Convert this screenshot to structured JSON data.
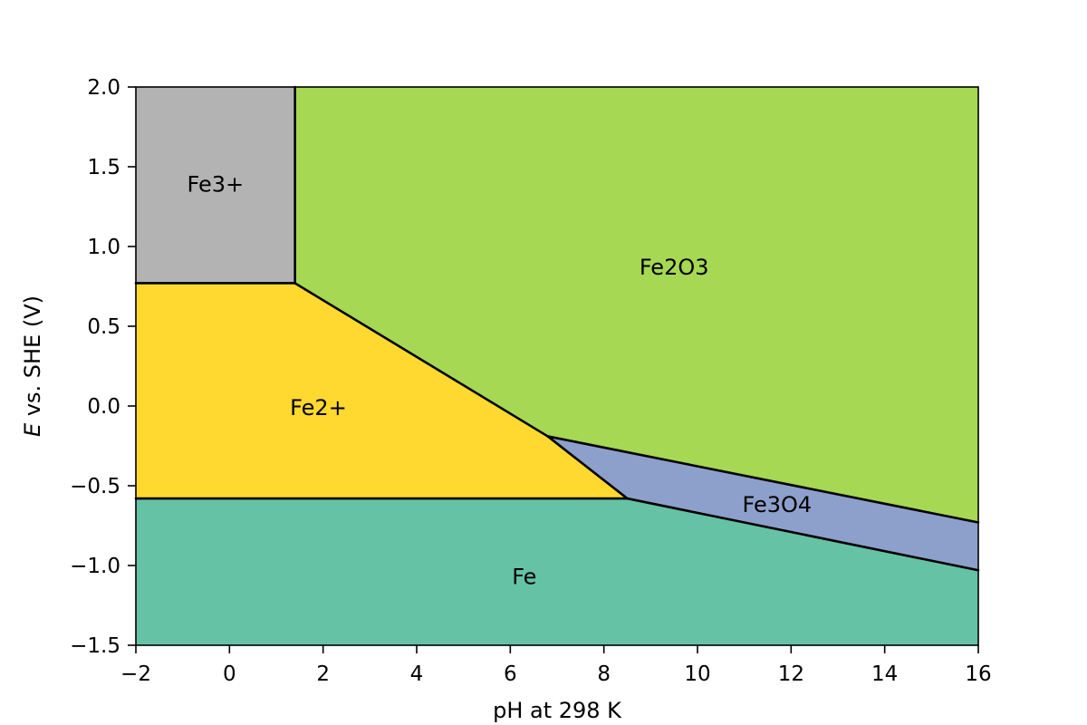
{
  "chart_data": {
    "type": "area",
    "title": "",
    "xlabel": "pH at 298 K",
    "ylabel_italic": "E",
    "ylabel_rest": " vs. SHE (V)",
    "xlim": [
      -2,
      16
    ],
    "ylim": [
      -1.5,
      2.0
    ],
    "xticks": [
      -2,
      0,
      2,
      4,
      6,
      8,
      10,
      12,
      14,
      16
    ],
    "yticks": [
      -1.5,
      -1.0,
      -0.5,
      0.0,
      0.5,
      1.0,
      1.5,
      2.0
    ],
    "xtick_labels": [
      "−2",
      "0",
      "2",
      "4",
      "6",
      "8",
      "10",
      "12",
      "14",
      "16"
    ],
    "ytick_labels": [
      "−1.5",
      "−1.0",
      "−0.5",
      "0.0",
      "0.5",
      "1.0",
      "1.5",
      "2.0"
    ],
    "grid": false,
    "regions": [
      {
        "name": "Fe3+",
        "color": "#b3b3b3",
        "polygon": [
          [
            -2,
            2.0
          ],
          [
            1.4,
            2.0
          ],
          [
            1.4,
            0.77
          ],
          [
            -2,
            0.77
          ]
        ],
        "label_at": [
          -0.3,
          1.39
        ]
      },
      {
        "name": "Fe2O3",
        "color": "#a6d854",
        "polygon": [
          [
            1.4,
            2.0
          ],
          [
            16,
            2.0
          ],
          [
            16,
            -0.73
          ],
          [
            6.8,
            -0.19
          ],
          [
            1.4,
            0.77
          ]
        ],
        "label_at": [
          9.5,
          0.87
        ]
      },
      {
        "name": "Fe2+",
        "color": "#ffd92f",
        "polygon": [
          [
            -2,
            0.77
          ],
          [
            1.4,
            0.77
          ],
          [
            6.8,
            -0.19
          ],
          [
            8.5,
            -0.58
          ],
          [
            -2,
            -0.58
          ]
        ],
        "label_at": [
          1.9,
          -0.01
        ]
      },
      {
        "name": "Fe3O4",
        "color": "#8da0cb",
        "polygon": [
          [
            6.8,
            -0.19
          ],
          [
            16,
            -0.73
          ],
          [
            16,
            -1.03
          ],
          [
            8.5,
            -0.58
          ]
        ],
        "label_at": [
          11.7,
          -0.62
        ]
      },
      {
        "name": "Fe",
        "color": "#66c2a5",
        "polygon": [
          [
            -2,
            -0.58
          ],
          [
            8.5,
            -0.58
          ],
          [
            16,
            -1.03
          ],
          [
            16,
            -1.5
          ],
          [
            -2,
            -1.5
          ]
        ],
        "label_at": [
          6.3,
          -1.07
        ]
      }
    ],
    "boundaries": [
      [
        [
          1.4,
          2.0
        ],
        [
          1.4,
          0.77
        ]
      ],
      [
        [
          -2,
          0.77
        ],
        [
          1.4,
          0.77
        ]
      ],
      [
        [
          1.4,
          0.77
        ],
        [
          6.8,
          -0.19
        ]
      ],
      [
        [
          6.8,
          -0.19
        ],
        [
          16,
          -0.73
        ]
      ],
      [
        [
          6.8,
          -0.19
        ],
        [
          8.5,
          -0.58
        ]
      ],
      [
        [
          -2,
          -0.58
        ],
        [
          8.5,
          -0.58
        ]
      ],
      [
        [
          8.5,
          -0.58
        ],
        [
          16,
          -1.03
        ]
      ]
    ]
  }
}
